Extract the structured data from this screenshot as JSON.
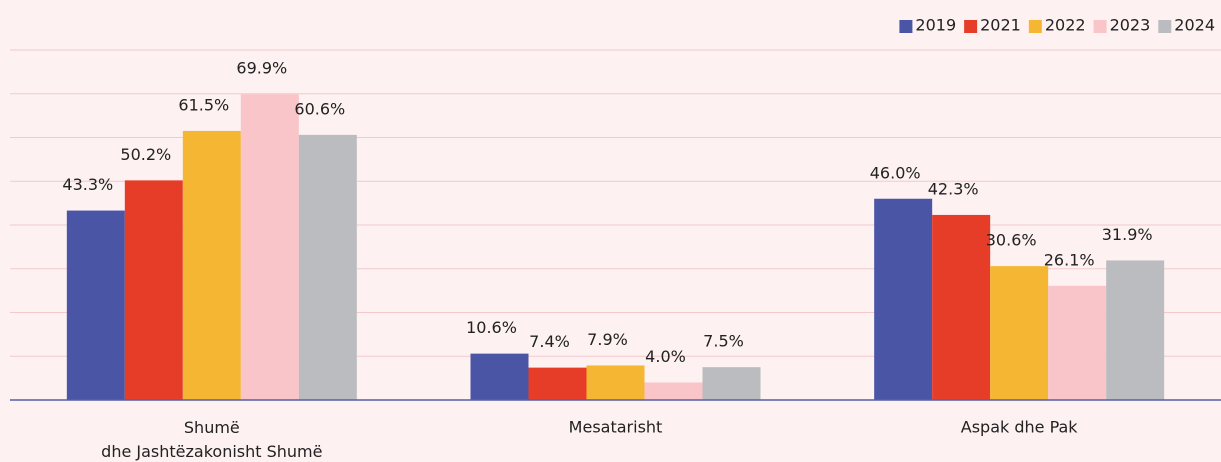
{
  "chart_data": {
    "type": "bar",
    "categories": [
      "Shumë\ndhe Jashtëzakonisht Shumë",
      "Mesatarisht",
      "Aspak dhe Pak"
    ],
    "series": [
      {
        "name": "2019",
        "color": "#4a55a5",
        "values": [
          43.3,
          10.6,
          46.0
        ],
        "value_labels": [
          "43.3%",
          "10.6%",
          "46.0%"
        ]
      },
      {
        "name": "2021",
        "color": "#e53d27",
        "values": [
          50.2,
          7.4,
          42.3
        ],
        "value_labels": [
          "50.2%",
          "7.4%",
          "42.3%"
        ]
      },
      {
        "name": "2022",
        "color": "#f5b733",
        "values": [
          61.5,
          7.9,
          30.6
        ],
        "value_labels": [
          "61.5%",
          "7.9%",
          "30.6%"
        ]
      },
      {
        "name": "2023",
        "color": "#f9c5c8",
        "values": [
          69.9,
          4.0,
          26.1
        ],
        "value_labels": [
          "69.9%",
          "4.0%",
          "26.1%"
        ]
      },
      {
        "name": "2024",
        "color": "#bbbcc0",
        "values": [
          60.6,
          7.5,
          31.9
        ],
        "value_labels": [
          "60.6%",
          "7.5%",
          "31.9%"
        ]
      }
    ],
    "ylim": [
      0,
      80
    ],
    "yticks": [
      0,
      10,
      20,
      30,
      40,
      50,
      60,
      70,
      80
    ],
    "grid": true,
    "legend": "top-right"
  }
}
